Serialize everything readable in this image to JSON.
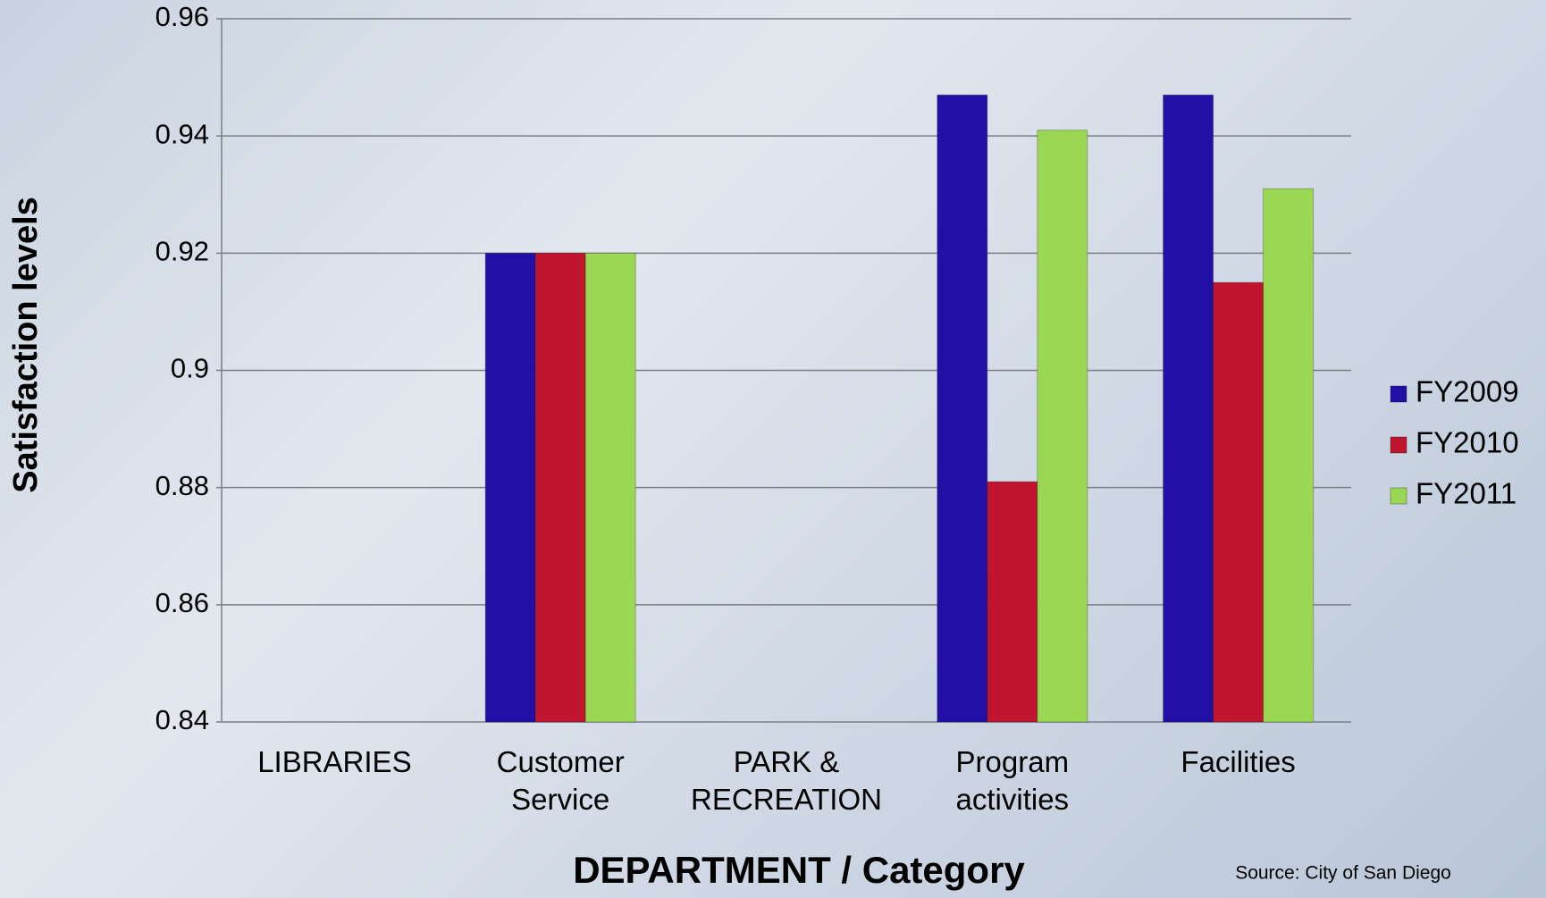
{
  "chart_data": {
    "type": "bar",
    "y_label": "Satisfaction levels",
    "x_label": "DEPARTMENT / Category",
    "source": "Source: City of San Diego",
    "categories": [
      "LIBRARIES",
      "Customer\nService",
      "PARK &\nRECREATION",
      "Program\nactivities",
      "Facilities"
    ],
    "series": [
      {
        "name": "FY2009",
        "color": "#2210a6",
        "values": [
          null,
          0.92,
          null,
          0.947,
          0.947
        ]
      },
      {
        "name": "FY2010",
        "color": "#c1152f",
        "values": [
          null,
          0.92,
          null,
          0.881,
          0.915
        ]
      },
      {
        "name": "FY2011",
        "color": "#9ad752",
        "values": [
          null,
          0.92,
          null,
          0.941,
          0.931
        ]
      }
    ],
    "ylim": [
      0.84,
      0.96
    ],
    "yticks": [
      0.84,
      0.86,
      0.88,
      0.9,
      0.92,
      0.94,
      0.96
    ],
    "grid": true,
    "legend": "right"
  }
}
